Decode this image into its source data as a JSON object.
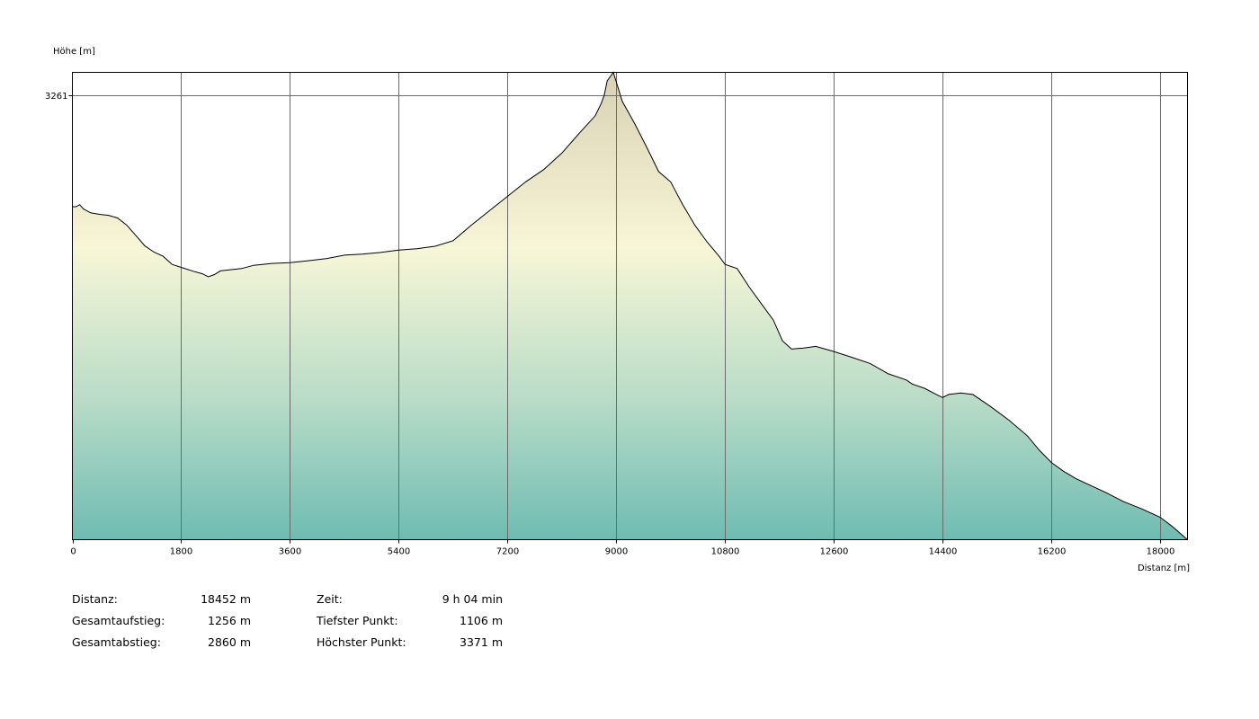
{
  "chart_data": {
    "type": "area",
    "title": "",
    "xlabel": "Distanz [m]",
    "ylabel": "Höhe [m]",
    "xlim": [
      0,
      18452
    ],
    "ylim": [
      1106,
      3371
    ],
    "x_ticks": [
      0,
      1800,
      3600,
      5400,
      7200,
      9000,
      10800,
      12600,
      14400,
      16200,
      18000
    ],
    "x_tick_labels": [
      "0",
      "1800",
      "3600",
      "5400",
      "7200",
      "9000",
      "10800",
      "12600",
      "14400",
      "16200",
      "18000"
    ],
    "y_ticks": [
      3261
    ],
    "y_tick_labels": [
      "3261"
    ],
    "grid": true,
    "series": [
      {
        "x": [
          0,
          60,
          120,
          180,
          300,
          450,
          600,
          750,
          900,
          1050,
          1200,
          1350,
          1500,
          1650,
          1800,
          2000,
          2150,
          2250,
          2350,
          2450,
          2600,
          2800,
          3000,
          3300,
          3600,
          3900,
          4200,
          4500,
          4800,
          5100,
          5400,
          5700,
          6000,
          6300,
          6600,
          6900,
          7200,
          7500,
          7800,
          8100,
          8400,
          8650,
          8750,
          8800,
          8850,
          8950,
          9100,
          9300,
          9500,
          9700,
          9900,
          10100,
          10300,
          10500,
          10700,
          10800,
          11000,
          11200,
          11400,
          11600,
          11750,
          11900,
          12100,
          12300,
          12600,
          12900,
          13200,
          13500,
          13800,
          13900,
          14100,
          14300,
          14400,
          14500,
          14700,
          14900,
          15200,
          15500,
          15800,
          16000,
          16200,
          16400,
          16600,
          16800,
          17100,
          17400,
          17700,
          18000,
          18200,
          18452
        ],
        "y": [
          2720,
          2720,
          2730,
          2710,
          2690,
          2683,
          2678,
          2665,
          2630,
          2580,
          2530,
          2500,
          2480,
          2440,
          2426,
          2407,
          2395,
          2380,
          2391,
          2409,
          2414,
          2420,
          2436,
          2445,
          2449,
          2458,
          2468,
          2485,
          2490,
          2498,
          2510,
          2516,
          2528,
          2555,
          2630,
          2700,
          2770,
          2840,
          2900,
          2980,
          3080,
          3160,
          3220,
          3260,
          3330,
          3371,
          3230,
          3125,
          3010,
          2890,
          2840,
          2730,
          2630,
          2550,
          2480,
          2440,
          2420,
          2330,
          2250,
          2170,
          2070,
          2030,
          2035,
          2043,
          2018,
          1990,
          1960,
          1910,
          1880,
          1860,
          1840,
          1809,
          1795,
          1810,
          1817,
          1810,
          1750,
          1685,
          1610,
          1540,
          1480,
          1438,
          1403,
          1375,
          1335,
          1290,
          1255,
          1215,
          1170,
          1106
        ]
      }
    ]
  },
  "stats": {
    "distance_label": "Distanz:",
    "distance_value": "18452 m",
    "ascent_label": "Gesamtaufstieg:",
    "ascent_value": "1256 m",
    "descent_label": "Gesamtabstieg:",
    "descent_value": "2860 m",
    "time_label": "Zeit:",
    "time_value": "9 h 04 min",
    "lowest_label": "Tiefster Punkt:",
    "lowest_value": "1106 m",
    "highest_label": "Höchster Punkt:",
    "highest_value": "3371 m"
  }
}
